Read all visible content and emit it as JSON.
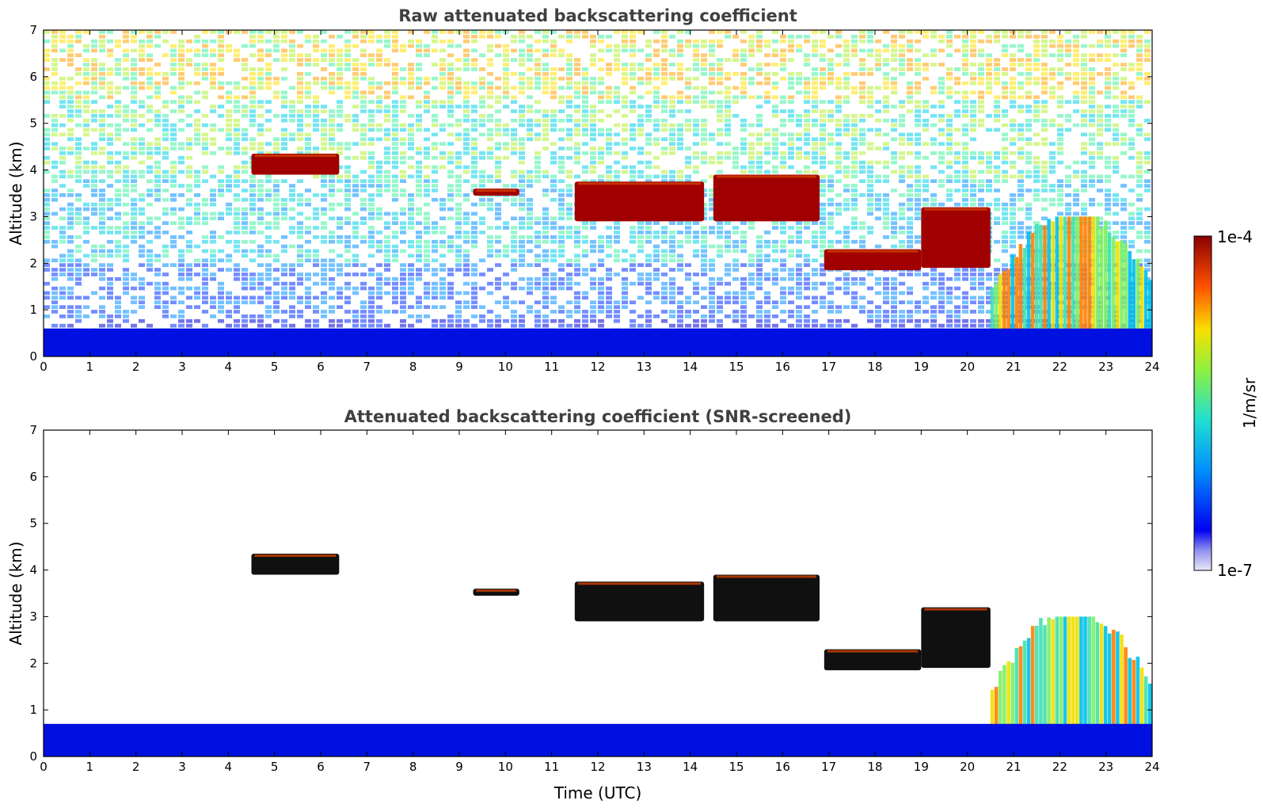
{
  "chart_data": [
    {
      "type": "heatmap",
      "title": "Raw attenuated backscattering coefficient",
      "ylabel": "Altitude (km)",
      "xlabel": "",
      "xlim": [
        0,
        24
      ],
      "ylim": [
        0,
        7
      ],
      "xticks": [
        "0",
        "1",
        "2",
        "3",
        "4",
        "5",
        "6",
        "7",
        "8",
        "9",
        "10",
        "11",
        "12",
        "13",
        "14",
        "15",
        "16",
        "17",
        "18",
        "19",
        "20",
        "21",
        "22",
        "23",
        "24"
      ],
      "yticks": [
        "0",
        "1",
        "2",
        "3",
        "4",
        "5",
        "6",
        "7"
      ],
      "background": "noise",
      "features": [
        {
          "kind": "cloud-layer",
          "time": [
            4.5,
            6.4
          ],
          "altitude": [
            3.9,
            4.35
          ],
          "level": "high"
        },
        {
          "kind": "cloud-layer",
          "time": [
            9.3,
            10.3
          ],
          "altitude": [
            3.45,
            3.6
          ],
          "level": "high"
        },
        {
          "kind": "cloud-layer",
          "time": [
            11.5,
            14.3
          ],
          "altitude": [
            2.9,
            3.75
          ],
          "level": "high"
        },
        {
          "kind": "cloud-layer",
          "time": [
            14.5,
            16.8
          ],
          "altitude": [
            2.9,
            3.9
          ],
          "level": "high"
        },
        {
          "kind": "cloud-layer",
          "time": [
            16.9,
            19.0
          ],
          "altitude": [
            1.85,
            2.3
          ],
          "level": "high"
        },
        {
          "kind": "cloud-layer",
          "time": [
            19.0,
            20.5
          ],
          "altitude": [
            1.9,
            3.2
          ],
          "level": "high"
        },
        {
          "kind": "precipitation",
          "time": [
            20.5,
            24.0
          ],
          "altitude": [
            0.0,
            3.0
          ],
          "level": "medium"
        },
        {
          "kind": "boundary-layer",
          "time": [
            0,
            24
          ],
          "altitude": [
            0.0,
            0.6
          ],
          "level": "low"
        }
      ]
    },
    {
      "type": "heatmap",
      "title": "Attenuated backscattering coefficient (SNR-screened)",
      "ylabel": "Altitude (km)",
      "xlabel": "Time (UTC)",
      "xlim": [
        0,
        24
      ],
      "ylim": [
        0,
        7
      ],
      "xticks": [
        "0",
        "1",
        "2",
        "3",
        "4",
        "5",
        "6",
        "7",
        "8",
        "9",
        "10",
        "11",
        "12",
        "13",
        "14",
        "15",
        "16",
        "17",
        "18",
        "19",
        "20",
        "21",
        "22",
        "23",
        "24"
      ],
      "yticks": [
        "0",
        "1",
        "2",
        "3",
        "4",
        "5",
        "6",
        "7"
      ],
      "background": "white",
      "features": [
        {
          "kind": "cloud-layer",
          "time": [
            4.5,
            6.4
          ],
          "altitude": [
            3.9,
            4.35
          ],
          "level": "high"
        },
        {
          "kind": "cloud-layer",
          "time": [
            9.3,
            10.3
          ],
          "altitude": [
            3.45,
            3.6
          ],
          "level": "high"
        },
        {
          "kind": "cloud-layer",
          "time": [
            11.5,
            14.3
          ],
          "altitude": [
            2.9,
            3.75
          ],
          "level": "high"
        },
        {
          "kind": "cloud-layer",
          "time": [
            14.5,
            16.8
          ],
          "altitude": [
            2.9,
            3.9
          ],
          "level": "high"
        },
        {
          "kind": "cloud-layer",
          "time": [
            16.9,
            19.0
          ],
          "altitude": [
            1.85,
            2.3
          ],
          "level": "high"
        },
        {
          "kind": "cloud-layer",
          "time": [
            19.0,
            20.5
          ],
          "altitude": [
            1.9,
            3.2
          ],
          "level": "high"
        },
        {
          "kind": "precipitation",
          "time": [
            20.5,
            24.0
          ],
          "altitude": [
            0.0,
            3.0
          ],
          "level": "medium"
        },
        {
          "kind": "boundary-layer",
          "time": [
            0,
            24
          ],
          "altitude": [
            0.0,
            0.7
          ],
          "level": "low"
        }
      ]
    }
  ],
  "colorbar": {
    "label": "1/m/sr",
    "max_label": "1e-4",
    "min_label": "1e-7",
    "colormap": "jet",
    "colors": [
      "#e8e8f8",
      "#0000f0",
      "#0090ff",
      "#20e0d0",
      "#90f040",
      "#f8e000",
      "#ff5000",
      "#8b0000"
    ]
  }
}
